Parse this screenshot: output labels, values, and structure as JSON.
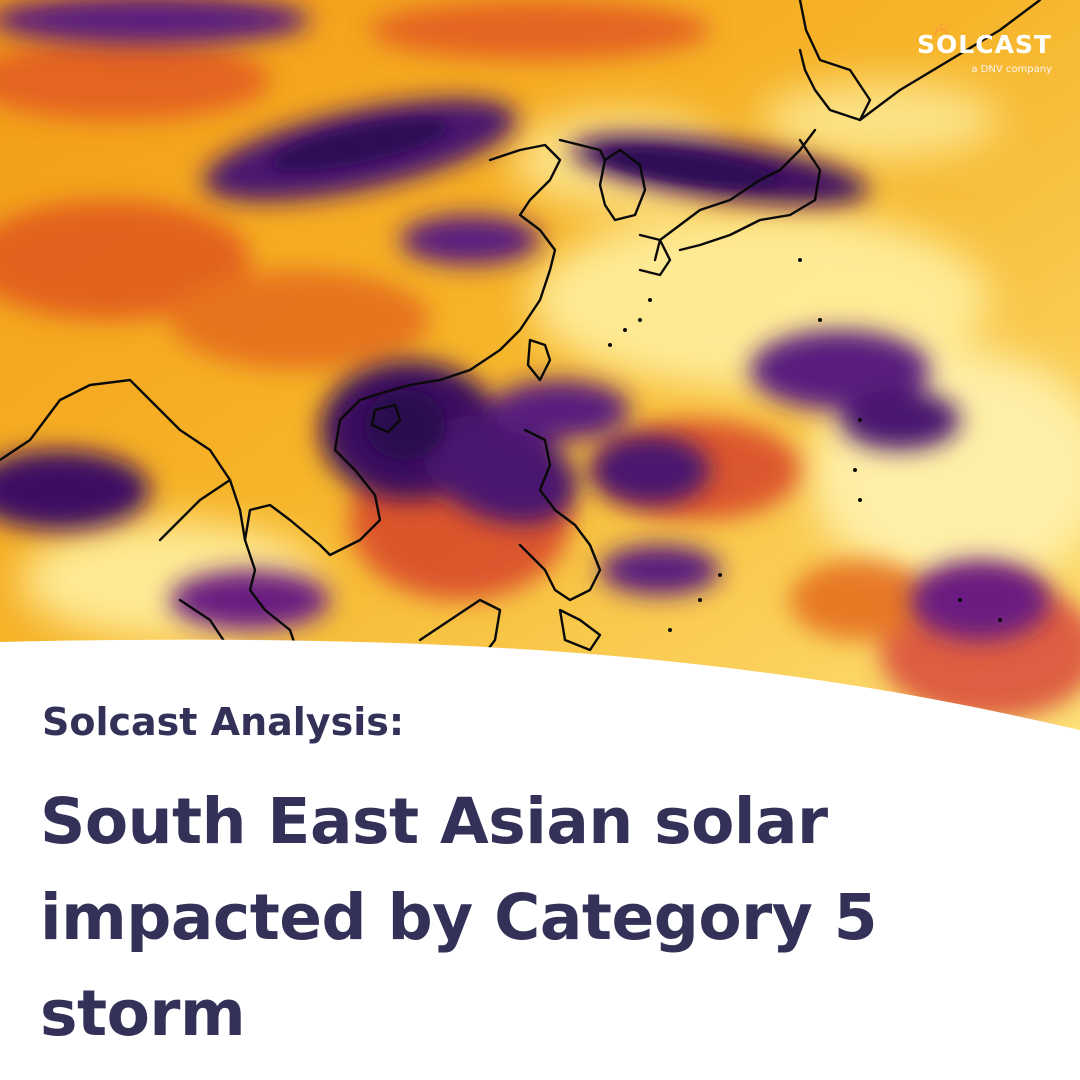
{
  "brand": {
    "name": "SOLCAST",
    "tagline": "a DNV company",
    "logo_color": "#ffffff"
  },
  "map": {
    "description_icon": "satellite-irradiance-map",
    "palette": [
      "#2e0a55",
      "#5a1a7e",
      "#9a2a86",
      "#d84a3a",
      "#f08a10",
      "#fbc02a",
      "#fff1a0"
    ],
    "coastline_color": "#0a0a0a"
  },
  "article": {
    "subtitle": "Solcast Analysis:",
    "headline": "South East Asian solar impacted by Category 5 storm",
    "text_color": "#343158"
  }
}
